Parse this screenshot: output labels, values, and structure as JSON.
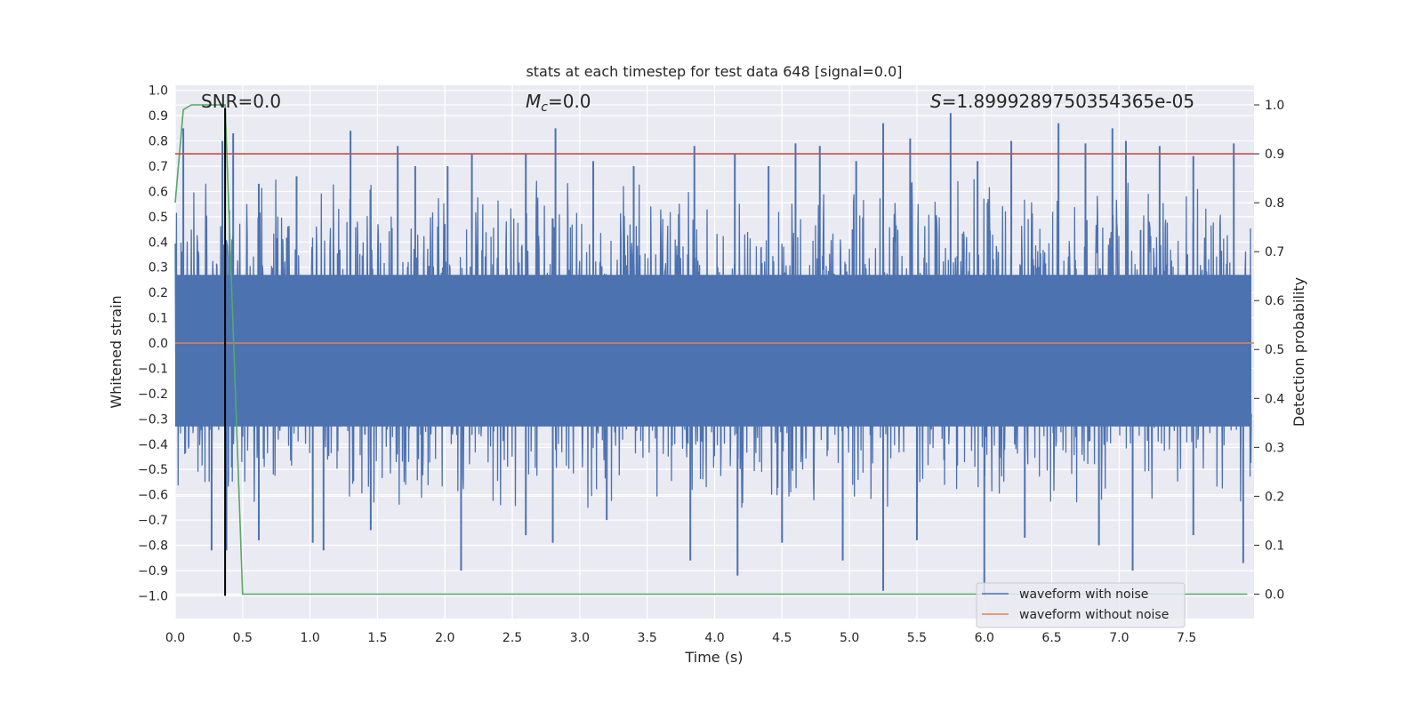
{
  "chart_data": {
    "type": "line",
    "title": "stats at each timestep for test data 648 [signal=0.0]",
    "xlabel": "Time (s)",
    "ylabel_left": "Whitened strain",
    "ylabel_right": "Detection probability",
    "xlim": [
      0.0,
      8.0
    ],
    "ylim_left": [
      -1.09,
      1.02
    ],
    "ylim_right": [
      -0.05,
      1.04
    ],
    "x_ticks": [
      "0.0",
      "0.5",
      "1.0",
      "1.5",
      "2.0",
      "2.5",
      "3.0",
      "3.5",
      "4.0",
      "4.5",
      "5.0",
      "5.5",
      "6.0",
      "6.5",
      "7.0",
      "7.5"
    ],
    "y_left_ticks": [
      "1.0",
      "0.9",
      "0.8",
      "0.7",
      "0.6",
      "0.5",
      "0.4",
      "0.3",
      "0.2",
      "0.1",
      "0.0",
      "−0.1",
      "−0.2",
      "−0.3",
      "−0.4",
      "−0.5",
      "−0.6",
      "−0.7",
      "−0.8",
      "−0.9",
      "−1.0"
    ],
    "y_right_ticks": [
      "1.0",
      "0.9",
      "0.8",
      "0.7",
      "0.6",
      "0.5",
      "0.4",
      "0.3",
      "0.2",
      "0.1",
      "0.0"
    ],
    "annotations": {
      "snr": "SNR=0.0",
      "mc_symbol": "M",
      "mc_sub": "c",
      "mc_value": "=0.0",
      "s_symbol": "S",
      "s_value": "=1.8999289750354365e-05"
    },
    "series": [
      {
        "name": "waveform with noise",
        "axis": "left",
        "color": "#4c72b0",
        "description": "dense whitened noise, mostly within ±0.4 with spikes up to ~0.9 and down to ~-1.0",
        "spikes_up": [
          [
            0.06,
            0.85
          ],
          [
            0.35,
            0.8
          ],
          [
            0.43,
            0.83
          ],
          [
            0.62,
            0.63
          ],
          [
            0.9,
            0.66
          ],
          [
            1.3,
            0.84
          ],
          [
            1.65,
            0.78
          ],
          [
            1.78,
            0.7
          ],
          [
            2.02,
            0.7
          ],
          [
            2.2,
            0.75
          ],
          [
            2.6,
            0.75
          ],
          [
            2.82,
            0.85
          ],
          [
            3.1,
            0.72
          ],
          [
            3.4,
            0.7
          ],
          [
            3.85,
            0.78
          ],
          [
            4.15,
            0.75
          ],
          [
            4.4,
            0.7
          ],
          [
            4.6,
            0.79
          ],
          [
            4.78,
            0.78
          ],
          [
            5.05,
            0.72
          ],
          [
            5.25,
            0.87
          ],
          [
            5.45,
            0.81
          ],
          [
            5.75,
            0.91
          ],
          [
            5.95,
            0.72
          ],
          [
            6.2,
            0.8
          ],
          [
            6.55,
            0.87
          ],
          [
            6.75,
            0.79
          ],
          [
            6.95,
            0.85
          ],
          [
            7.05,
            0.8
          ],
          [
            7.3,
            0.78
          ],
          [
            7.55,
            0.74
          ],
          [
            7.85,
            0.79
          ]
        ],
        "spikes_down": [
          [
            0.27,
            -0.82
          ],
          [
            0.38,
            -0.82
          ],
          [
            0.62,
            -0.78
          ],
          [
            1.02,
            -0.79
          ],
          [
            1.1,
            -0.82
          ],
          [
            1.45,
            -0.74
          ],
          [
            2.12,
            -0.9
          ],
          [
            2.6,
            -0.76
          ],
          [
            2.8,
            -0.79
          ],
          [
            3.2,
            -0.7
          ],
          [
            3.82,
            -0.86
          ],
          [
            4.17,
            -0.92
          ],
          [
            4.5,
            -0.79
          ],
          [
            4.95,
            -0.86
          ],
          [
            5.25,
            -0.98
          ],
          [
            5.5,
            -0.78
          ],
          [
            6.0,
            -1.0
          ],
          [
            6.3,
            -0.77
          ],
          [
            6.85,
            -0.8
          ],
          [
            7.1,
            -0.9
          ],
          [
            7.55,
            -0.76
          ],
          [
            7.92,
            -0.87
          ]
        ]
      },
      {
        "name": "waveform without noise",
        "axis": "left",
        "color": "#dd8452",
        "x": [
          0.0,
          8.0
        ],
        "values": [
          0.0,
          0.0
        ]
      },
      {
        "name": "detection probability",
        "axis": "right",
        "color": "#55a868",
        "x": [
          0.0,
          0.06,
          0.12,
          0.2,
          0.37,
          0.5,
          7.95
        ],
        "values": [
          0.8,
          0.99,
          1.0,
          1.0,
          1.0,
          0.0,
          0.0
        ]
      },
      {
        "name": "threshold",
        "axis": "right",
        "color": "#c44e52",
        "x": [
          0.0,
          8.0
        ],
        "values": [
          0.9,
          0.9
        ]
      },
      {
        "name": "detection marker",
        "axis": "left",
        "color": "#000000",
        "x": [
          0.37,
          0.37
        ],
        "values": [
          -1.0,
          0.93
        ]
      }
    ],
    "legend": {
      "position": "lower-right",
      "entries": [
        "waveform with noise",
        "waveform without noise"
      ]
    },
    "background_color": "#eaeaf2",
    "grid_color": "#ffffff"
  }
}
